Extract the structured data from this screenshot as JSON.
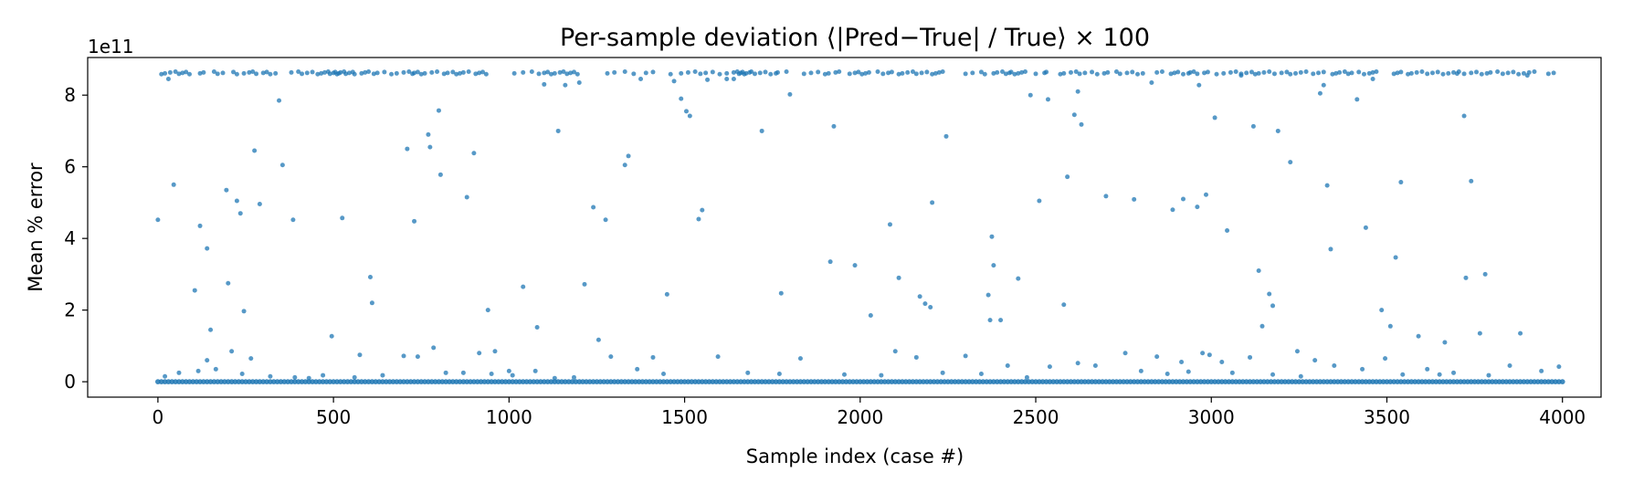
{
  "chart_data": {
    "type": "scatter",
    "title": "Per-sample deviation  ⟨|Pred−True| / True⟩ × 100",
    "xlabel": "Sample index (case #)",
    "ylabel": "Mean % error",
    "y_offset_label": "1e11",
    "xlim": [
      -200,
      4110
    ],
    "ylim": [
      -0.43,
      9.05
    ],
    "x_ticks": [
      0,
      500,
      1000,
      1500,
      2000,
      2500,
      3000,
      3500,
      4000
    ],
    "x_tick_labels": [
      "0",
      "500",
      "1000",
      "1500",
      "2000",
      "2500",
      "3000",
      "3500",
      "4000"
    ],
    "y_ticks": [
      0,
      2,
      4,
      6,
      8
    ],
    "y_tick_labels": [
      "0",
      "2",
      "4",
      "6",
      "8"
    ],
    "grid": false,
    "point_color": "#1f77b4",
    "baseline_series": {
      "x_start": 0,
      "x_end": 4000,
      "y": 0
    },
    "series": [
      {
        "x": [
          0,
          30,
          45,
          105,
          120,
          140,
          150,
          195,
          200,
          225,
          235,
          245,
          275,
          290,
          345,
          355,
          385,
          495,
          525,
          605,
          610,
          710,
          730,
          770,
          775,
          800,
          805,
          880,
          900,
          940,
          960,
          1000,
          1040,
          1080,
          1100,
          1140,
          1160,
          1200,
          1215,
          1240,
          1255,
          1275,
          1330,
          1340,
          1375,
          1450,
          1470,
          1490,
          1505,
          1515,
          1540,
          1550,
          1565,
          1620,
          1640,
          1720,
          1775,
          1800,
          1915,
          1925,
          1985,
          2030,
          2085,
          2110,
          2170,
          2185,
          2200,
          2205,
          2245,
          2365,
          2370,
          2375,
          2380,
          2400,
          2450,
          2485,
          2510,
          2535,
          2580,
          2590,
          2610,
          2620,
          2630,
          2700,
          2780,
          2830,
          2890,
          2920,
          2960,
          2965,
          2985,
          3010,
          3045,
          3085,
          3120,
          3135,
          3145,
          3165,
          3175,
          3190,
          3225,
          3245,
          3310,
          3320,
          3330,
          3340,
          3415,
          3440,
          3460,
          3485,
          3510,
          3525,
          3540,
          3590,
          3665,
          3700,
          3720,
          3725,
          3740,
          3765,
          3780,
          3880,
          3900
        ],
        "y": [
          4.52,
          8.45,
          5.5,
          2.55,
          4.35,
          3.72,
          1.45,
          5.35,
          2.75,
          5.05,
          4.7,
          1.97,
          6.45,
          4.96,
          7.85,
          6.05,
          4.52,
          1.27,
          4.57,
          2.92,
          2.2,
          6.5,
          4.48,
          6.9,
          6.55,
          7.57,
          5.78,
          5.15,
          6.38,
          2.0,
          0.85,
          0.3,
          2.65,
          1.52,
          8.3,
          7.0,
          8.28,
          8.35,
          2.72,
          4.87,
          1.17,
          4.52,
          6.05,
          6.3,
          8.45,
          2.44,
          8.39,
          7.9,
          7.55,
          7.42,
          4.54,
          4.79,
          8.43,
          8.45,
          8.45,
          7.0,
          2.47,
          8.02,
          3.35,
          7.13,
          3.25,
          1.85,
          4.39,
          2.9,
          2.38,
          2.18,
          2.08,
          5.0,
          6.85,
          2.42,
          1.72,
          4.05,
          3.25,
          1.72,
          2.88,
          8.0,
          5.05,
          7.88,
          2.15,
          5.72,
          7.45,
          8.1,
          7.18,
          5.18,
          5.09,
          8.35,
          4.8,
          5.1,
          4.88,
          8.28,
          5.22,
          7.37,
          4.22,
          8.55,
          7.13,
          3.1,
          1.55,
          2.45,
          2.12,
          7.0,
          6.13,
          0.85,
          8.05,
          8.28,
          5.48,
          3.7,
          7.88,
          4.3,
          8.45,
          2.0,
          1.55,
          3.47,
          5.57,
          1.27,
          1.1,
          8.6,
          7.42,
          2.9,
          5.6,
          1.35,
          3.0,
          1.35,
          8.55
        ],
        "top_cluster_y": 8.62,
        "top_cluster_x": [
          10,
          20,
          35,
          50,
          60,
          70,
          80,
          90,
          120,
          130,
          160,
          170,
          185,
          215,
          225,
          245,
          260,
          270,
          280,
          300,
          310,
          320,
          335,
          380,
          400,
          410,
          425,
          440,
          455,
          465,
          475,
          485,
          490,
          500,
          505,
          510,
          515,
          520,
          530,
          535,
          545,
          555,
          560,
          580,
          590,
          600,
          615,
          625,
          645,
          665,
          680,
          700,
          715,
          725,
          730,
          740,
          750,
          760,
          780,
          795,
          815,
          825,
          840,
          850,
          860,
          870,
          885,
          905,
          915,
          925,
          935,
          1015,
          1040,
          1065,
          1085,
          1100,
          1110,
          1120,
          1130,
          1145,
          1155,
          1165,
          1175,
          1185,
          1195,
          1280,
          1300,
          1330,
          1355,
          1390,
          1410,
          1460,
          1490,
          1510,
          1530,
          1545,
          1560,
          1580,
          1600,
          1620,
          1640,
          1650,
          1655,
          1660,
          1665,
          1670,
          1675,
          1685,
          1690,
          1700,
          1715,
          1730,
          1745,
          1760,
          1765,
          1790,
          1840,
          1860,
          1880,
          1900,
          1910,
          1930,
          1940,
          1970,
          1985,
          1995,
          2005,
          2015,
          2025,
          2050,
          2065,
          2080,
          2090,
          2110,
          2120,
          2135,
          2150,
          2160,
          2175,
          2190,
          2205,
          2215,
          2225,
          2235,
          2300,
          2320,
          2345,
          2355,
          2380,
          2390,
          2405,
          2415,
          2425,
          2430,
          2440,
          2450,
          2460,
          2470,
          2500,
          2525,
          2530,
          2570,
          2580,
          2600,
          2615,
          2625,
          2640,
          2660,
          2675,
          2695,
          2705,
          2730,
          2740,
          2760,
          2775,
          2790,
          2805,
          2845,
          2860,
          2885,
          2895,
          2905,
          2920,
          2935,
          2940,
          2950,
          2960,
          2980,
          2990,
          3015,
          3035,
          3055,
          3070,
          3085,
          3100,
          3115,
          3125,
          3135,
          3150,
          3165,
          3180,
          3200,
          3215,
          3225,
          3240,
          3255,
          3270,
          3290,
          3305,
          3320,
          3345,
          3355,
          3365,
          3380,
          3390,
          3400,
          3420,
          3435,
          3450,
          3460,
          3470,
          3520,
          3530,
          3540,
          3560,
          3570,
          3585,
          3600,
          3615,
          3630,
          3645,
          3660,
          3675,
          3690,
          3705,
          3720,
          3740,
          3755,
          3770,
          3785,
          3795,
          3815,
          3830,
          3845,
          3860,
          3875,
          3890,
          3905,
          3920,
          3960,
          3975
        ]
      }
    ],
    "small_scatter": {
      "x": [
        20,
        60,
        115,
        140,
        165,
        210,
        240,
        265,
        320,
        390,
        430,
        470,
        560,
        575,
        640,
        700,
        740,
        785,
        820,
        870,
        915,
        950,
        1010,
        1075,
        1130,
        1185,
        1290,
        1365,
        1410,
        1440,
        1595,
        1680,
        1770,
        1830,
        1955,
        2060,
        2100,
        2160,
        2235,
        2300,
        2345,
        2420,
        2475,
        2540,
        2620,
        2670,
        2755,
        2800,
        2845,
        2875,
        2915,
        2935,
        2975,
        2995,
        3030,
        3060,
        3110,
        3175,
        3255,
        3295,
        3350,
        3430,
        3495,
        3545,
        3615,
        3650,
        3690,
        3790,
        3850,
        3940,
        3990
      ],
      "y": [
        0.15,
        0.25,
        0.3,
        0.6,
        0.35,
        0.85,
        0.22,
        0.65,
        0.15,
        0.12,
        0.1,
        0.18,
        0.12,
        0.75,
        0.18,
        0.72,
        0.7,
        0.95,
        0.25,
        0.25,
        0.8,
        0.22,
        0.18,
        0.3,
        0.1,
        0.12,
        0.7,
        0.35,
        0.68,
        0.22,
        0.7,
        0.25,
        0.22,
        0.65,
        0.2,
        0.18,
        0.85,
        0.68,
        0.25,
        0.72,
        0.22,
        0.45,
        0.12,
        0.42,
        0.52,
        0.45,
        0.8,
        0.3,
        0.7,
        0.22,
        0.55,
        0.28,
        0.8,
        0.75,
        0.55,
        0.25,
        0.68,
        0.2,
        0.15,
        0.6,
        0.45,
        0.35,
        0.65,
        0.2,
        0.35,
        0.2,
        0.25,
        0.18,
        0.45,
        0.3,
        0.42
      ]
    }
  }
}
